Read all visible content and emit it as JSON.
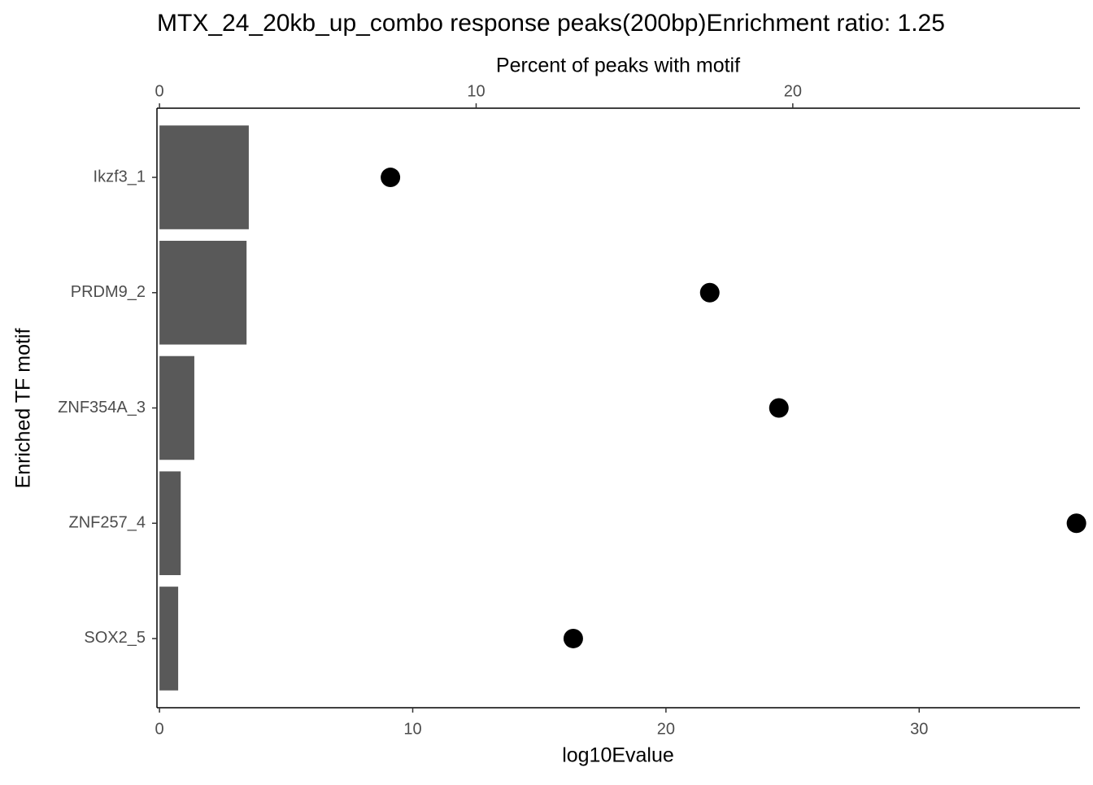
{
  "chart_data": {
    "type": "bar-dot",
    "title": "MTX_24_20kb_up_combo response peaks(200bp)Enrichment ratio: 1.25",
    "x2_label": "Percent of peaks with motif",
    "x_label": "log10Evalue",
    "y_label": "Enriched TF motif",
    "categories": [
      "Ikzf3_1",
      "PRDM9_2",
      "ZNF354A_3",
      "ZNF257_4",
      "SOX2_5"
    ],
    "bar_values": [
      2.82,
      2.75,
      1.1,
      0.67,
      0.59
    ],
    "bar_color": "#595959",
    "point_values": [
      9.12,
      21.73,
      24.46,
      36.21,
      16.34
    ],
    "point_color": "#000000",
    "xlim": [
      -0.1,
      36.35
    ],
    "xticks": [
      0,
      10,
      20,
      30
    ],
    "x2lim": [
      -0.08,
      29.07
    ],
    "x2ticks": [
      0,
      10,
      20
    ]
  }
}
